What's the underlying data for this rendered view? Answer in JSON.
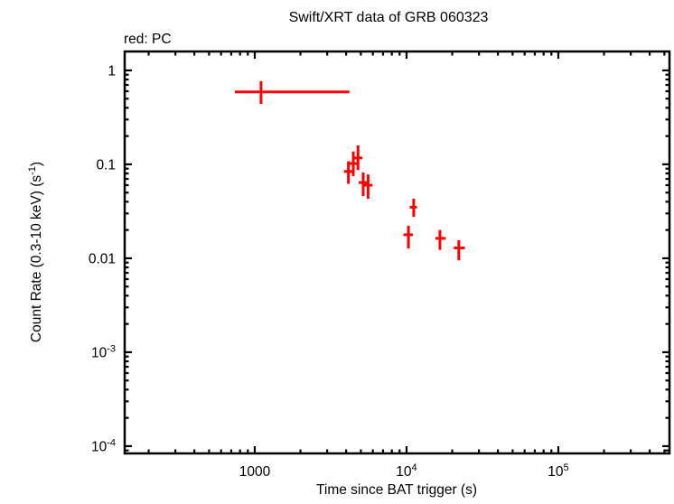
{
  "header": {
    "title": "Swift/XRT data of GRB 060323",
    "legend": "red: PC"
  },
  "chart_data": {
    "type": "scatter",
    "title": "Swift/XRT data of GRB 060323",
    "legend_label": "red: PC",
    "xlabel": "Time since BAT trigger (s)",
    "ylabel": "Count Rate (0.3-10 keV) (s-1)",
    "ylabel_parts": [
      {
        "t": "Count Rate (0.3-10 keV) (s"
      },
      {
        "t": "-1",
        "sup": true
      },
      {
        "t": ")"
      }
    ],
    "x_scale": "log",
    "y_scale": "log",
    "xlim": [
      139,
      540000
    ],
    "ylim": [
      8.37e-05,
      1.59
    ],
    "grid": false,
    "x_ticks": [
      {
        "v": 1000,
        "parts": [
          {
            "t": "1000"
          }
        ]
      },
      {
        "v": 10000,
        "parts": [
          {
            "t": "10"
          },
          {
            "t": "4",
            "sup": true
          }
        ]
      },
      {
        "v": 100000,
        "parts": [
          {
            "t": "10"
          },
          {
            "t": "5",
            "sup": true
          }
        ]
      }
    ],
    "y_ticks": [
      {
        "v": 1,
        "parts": [
          {
            "t": "1"
          }
        ]
      },
      {
        "v": 0.1,
        "parts": [
          {
            "t": "0.1"
          }
        ]
      },
      {
        "v": 0.01,
        "parts": [
          {
            "t": "0.01"
          }
        ]
      },
      {
        "v": 0.001,
        "parts": [
          {
            "t": "10"
          },
          {
            "t": "-3",
            "sup": true
          }
        ]
      },
      {
        "v": 0.0001,
        "parts": [
          {
            "t": "10"
          },
          {
            "t": "-4",
            "sup": true
          }
        ]
      }
    ],
    "series": [
      {
        "name": "PC",
        "color": "#ff0000",
        "marker": "error-bar-cross",
        "points": [
          {
            "t": 1100,
            "t_lo": 740,
            "t_hi": 4200,
            "rate": 0.59,
            "rate_lo": 0.44,
            "rate_hi": 0.77
          },
          {
            "t": 4140,
            "t_lo": 3870,
            "t_hi": 4430,
            "rate": 0.084,
            "rate_lo": 0.062,
            "rate_hi": 0.108
          },
          {
            "t": 4460,
            "t_lo": 4170,
            "t_hi": 4770,
            "rate": 0.102,
            "rate_lo": 0.075,
            "rate_hi": 0.137
          },
          {
            "t": 4790,
            "t_lo": 4480,
            "t_hi": 5120,
            "rate": 0.117,
            "rate_lo": 0.087,
            "rate_hi": 0.159
          },
          {
            "t": 5180,
            "t_lo": 4840,
            "t_hi": 5540,
            "rate": 0.064,
            "rate_lo": 0.046,
            "rate_hi": 0.082
          },
          {
            "t": 5580,
            "t_lo": 5220,
            "t_hi": 5970,
            "rate": 0.06,
            "rate_lo": 0.043,
            "rate_hi": 0.078
          },
          {
            "t": 10300,
            "t_lo": 9550,
            "t_hi": 11000,
            "rate": 0.0178,
            "rate_lo": 0.0127,
            "rate_hi": 0.0222
          },
          {
            "t": 11150,
            "t_lo": 10500,
            "t_hi": 11700,
            "rate": 0.035,
            "rate_lo": 0.0276,
            "rate_hi": 0.043
          },
          {
            "t": 16600,
            "t_lo": 15500,
            "t_hi": 18100,
            "rate": 0.0163,
            "rate_lo": 0.0123,
            "rate_hi": 0.02
          },
          {
            "t": 22100,
            "t_lo": 20500,
            "t_hi": 24200,
            "rate": 0.0129,
            "rate_lo": 0.0095,
            "rate_hi": 0.0156
          }
        ]
      }
    ],
    "colors": {
      "data": "#ff0000",
      "axis": "#000000",
      "background": "#ffffff"
    }
  }
}
